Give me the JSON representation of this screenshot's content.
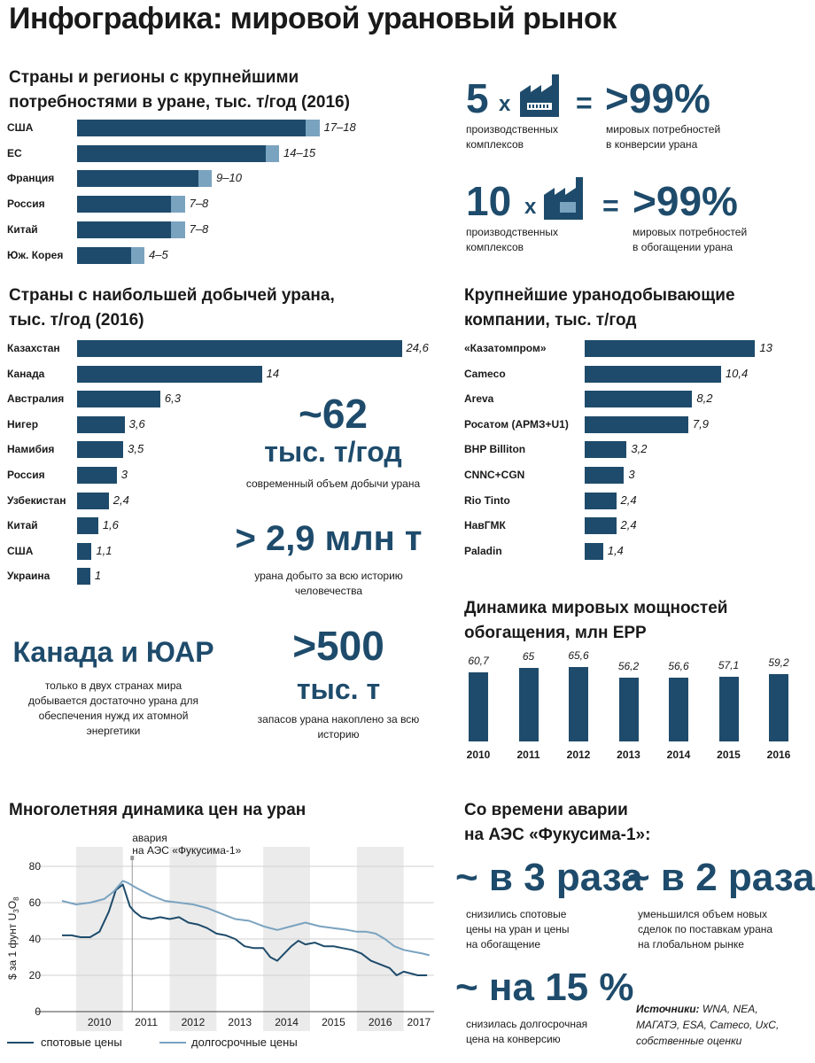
{
  "title": "Инфографика: мировой урановый рынок",
  "colors": {
    "dark": "#1e4b6b",
    "light": "#7aa3c0",
    "stripe": "#ebebeb"
  },
  "consumption": {
    "heading_line1": "Страны и регионы с крупнейшими",
    "heading_line2": "потребностями в уране, тыс. т/год (2016)",
    "items": [
      {
        "label": "США",
        "min": 17,
        "max": 18,
        "text": "17–18"
      },
      {
        "label": "ЕС",
        "min": 14,
        "max": 15,
        "text": "14–15"
      },
      {
        "label": "Франция",
        "min": 9,
        "max": 10,
        "text": "9–10"
      },
      {
        "label": "Россия",
        "min": 7,
        "max": 8,
        "text": "7–8"
      },
      {
        "label": "Китай",
        "min": 7,
        "max": 8,
        "text": "7–8"
      },
      {
        "label": "Юж. Корея",
        "min": 4,
        "max": 5,
        "text": "4–5"
      }
    ]
  },
  "conversion": {
    "count": "5",
    "x": "x",
    "eq": "=",
    "percent": ">99%",
    "left_line1": "производственных",
    "left_line2": "комплексов",
    "right_line1": "мировых потребностей",
    "right_line2": "в конверсии урана"
  },
  "enrichment": {
    "count": "10",
    "x": "x",
    "eq": "=",
    "percent": ">99%",
    "left_line1": "производственных",
    "left_line2": "комплексов",
    "right_line1": "мировых потребностей",
    "right_line2": "в обогащении урана"
  },
  "production": {
    "heading_line1": "Страны с наибольшей добычей урана,",
    "heading_line2": "тыс. т/год (2016)",
    "items": [
      {
        "label": "Казахстан",
        "value": 24.6,
        "text": "24,6"
      },
      {
        "label": "Канада",
        "value": 14,
        "text": "14"
      },
      {
        "label": "Австралия",
        "value": 6.3,
        "text": "6,3"
      },
      {
        "label": "Нигер",
        "value": 3.6,
        "text": "3,6"
      },
      {
        "label": "Намибия",
        "value": 3.5,
        "text": "3,5"
      },
      {
        "label": "Россия",
        "value": 3,
        "text": "3"
      },
      {
        "label": "Узбекистан",
        "value": 2.4,
        "text": "2,4"
      },
      {
        "label": "Китай",
        "value": 1.6,
        "text": "1,6"
      },
      {
        "label": "США",
        "value": 1.1,
        "text": "1,1"
      },
      {
        "label": "Украина",
        "value": 1,
        "text": "1"
      }
    ]
  },
  "stat_production": {
    "value": "~62",
    "unit": "тыс. т/год",
    "caption": "современный объем добычи урана"
  },
  "stat_history": {
    "value": "> 2,9 млн т",
    "caption_line1": "урана добыто за всю историю",
    "caption_line2": "человечества"
  },
  "stat_canada": {
    "value": "Канада и ЮАР",
    "line1": "только в двух странах мира",
    "line2": "добывается достаточно урана для",
    "line3": "обеспечения нужд их атомной",
    "line4": "энергетики"
  },
  "stat_reserves": {
    "value": ">500",
    "unit": "тыс. т",
    "line1": "запасов урана накоплено за всю",
    "line2": "историю"
  },
  "companies": {
    "heading_line1": "Крупнейшие уранодобывающие",
    "heading_line2": "компании, тыс. т/год",
    "items": [
      {
        "label": "«Казатомпром»",
        "value": 13,
        "text": "13"
      },
      {
        "label": "Cameco",
        "value": 10.4,
        "text": "10,4"
      },
      {
        "label": "Areva",
        "value": 8.2,
        "text": "8,2"
      },
      {
        "label": "Росатом (АРМЗ+U1)",
        "value": 7.9,
        "text": "7,9"
      },
      {
        "label": "BHP Billiton",
        "value": 3.2,
        "text": "3,2"
      },
      {
        "label": "CNNC+CGN",
        "value": 3,
        "text": "3"
      },
      {
        "label": "Rio Tinto",
        "value": 2.4,
        "text": "2,4"
      },
      {
        "label": "НавГМК",
        "value": 2.4,
        "text": "2,4"
      },
      {
        "label": "Paladin",
        "value": 1.4,
        "text": "1,4"
      }
    ]
  },
  "enrichment_capacity": {
    "heading_line1": "Динамика мировых мощностей",
    "heading_line2": "обогащения, млн ЕРР",
    "items": [
      {
        "year": "2010",
        "value": 60.7,
        "text": "60,7"
      },
      {
        "year": "2011",
        "value": 65,
        "text": "65"
      },
      {
        "year": "2012",
        "value": 65.6,
        "text": "65,6"
      },
      {
        "year": "2013",
        "value": 56.2,
        "text": "56,2"
      },
      {
        "year": "2014",
        "value": 56.6,
        "text": "56,6"
      },
      {
        "year": "2015",
        "value": 57.1,
        "text": "57,1"
      },
      {
        "year": "2016",
        "value": 59.2,
        "text": "59,2"
      }
    ]
  },
  "prices": {
    "heading": "Многолетняя динамика цен на уран",
    "ylabel_prefix": "$ за 1 фунт U",
    "ylabel_sub3": "3",
    "ylabel_o": "O",
    "ylabel_sub8": "8",
    "annotation_line1": "авария",
    "annotation_line2": "на АЭС «Фукусима-1»",
    "yticks": [
      "0",
      "20",
      "40",
      "60",
      "80"
    ],
    "years": [
      "2010",
      "2011",
      "2012",
      "2013",
      "2014",
      "2015",
      "2016",
      "2017"
    ],
    "legend_spot": "спотовые цены",
    "legend_long": "долгосрочные цены"
  },
  "chart_data": [
    {
      "type": "bar",
      "title": "Страны и регионы с крупнейшими потребностями в уране, тыс. т/год (2016)",
      "categories": [
        "США",
        "ЕС",
        "Франция",
        "Россия",
        "Китай",
        "Юж. Корея"
      ],
      "series": [
        {
          "values_min": [
            17,
            14,
            9,
            7,
            7,
            4
          ],
          "values_max": [
            18,
            15,
            10,
            8,
            8,
            5
          ]
        }
      ]
    },
    {
      "type": "bar",
      "title": "Страны с наибольшей добычей урана, тыс. т/год (2016)",
      "categories": [
        "Казахстан",
        "Канада",
        "Австралия",
        "Нигер",
        "Намибия",
        "Россия",
        "Узбекистан",
        "Китай",
        "США",
        "Украина"
      ],
      "values": [
        24.6,
        14,
        6.3,
        3.6,
        3.5,
        3,
        2.4,
        1.6,
        1.1,
        1
      ]
    },
    {
      "type": "bar",
      "title": "Крупнейшие уранодобывающие компании, тыс. т/год",
      "categories": [
        "«Казатомпром»",
        "Cameco",
        "Areva",
        "Росатом (АРМЗ+U1)",
        "BHP Billiton",
        "CNNC+CGN",
        "Rio Tinto",
        "НавГМК",
        "Paladin"
      ],
      "values": [
        13,
        10.4,
        8.2,
        7.9,
        3.2,
        3,
        2.4,
        2.4,
        1.4
      ]
    },
    {
      "type": "bar",
      "title": "Динамика мировых мощностей обогащения, млн ЕРР",
      "categories": [
        "2010",
        "2011",
        "2012",
        "2013",
        "2014",
        "2015",
        "2016"
      ],
      "values": [
        60.7,
        65,
        65.6,
        56.2,
        56.6,
        57.1,
        59.2
      ]
    },
    {
      "type": "line",
      "title": "Многолетняя динамика цен на уран",
      "ylabel": "$ за 1 фунт U3O8",
      "ylim": [
        0,
        80
      ],
      "xlim": [
        2009.7,
        2017.65
      ],
      "grid": true,
      "legend": "bottom",
      "series": [
        {
          "name": "спотовые цены",
          "x": [
            2009.7,
            2009.9,
            2010.1,
            2010.3,
            2010.5,
            2010.7,
            2010.85,
            2011.0,
            2011.05,
            2011.15,
            2011.25,
            2011.4,
            2011.6,
            2011.8,
            2012.0,
            2012.2,
            2012.4,
            2012.6,
            2012.8,
            2013.0,
            2013.2,
            2013.4,
            2013.6,
            2013.8,
            2014.0,
            2014.15,
            2014.3,
            2014.45,
            2014.6,
            2014.75,
            2014.9,
            2015.1,
            2015.3,
            2015.5,
            2015.7,
            2015.9,
            2016.1,
            2016.3,
            2016.5,
            2016.7,
            2016.85,
            2017.0,
            2017.15,
            2017.3,
            2017.5
          ],
          "y": [
            42,
            42,
            41,
            41,
            44,
            55,
            67,
            70,
            66,
            58,
            55,
            52,
            51,
            52,
            51,
            52,
            49,
            48,
            46,
            43,
            42,
            40,
            36,
            35,
            35,
            30,
            28,
            32,
            36,
            39,
            37,
            38,
            36,
            36,
            35,
            34,
            32,
            28,
            26,
            24,
            20,
            22,
            21,
            20,
            20
          ]
        },
        {
          "name": "долгосрочные цены",
          "x": [
            2009.7,
            2010.0,
            2010.3,
            2010.6,
            2010.8,
            2011.0,
            2011.1,
            2011.3,
            2011.6,
            2011.9,
            2012.2,
            2012.5,
            2012.8,
            2013.1,
            2013.4,
            2013.7,
            2014.0,
            2014.3,
            2014.6,
            2014.9,
            2015.2,
            2015.5,
            2015.8,
            2016.0,
            2016.2,
            2016.4,
            2016.6,
            2016.8,
            2017.0,
            2017.2,
            2017.4,
            2017.55
          ],
          "y": [
            61,
            59,
            60,
            62,
            66,
            72,
            71,
            68,
            64,
            61,
            60,
            59,
            57,
            54,
            51,
            50,
            47,
            45,
            47,
            49,
            47,
            46,
            45,
            44,
            44,
            43,
            40,
            36,
            34,
            33,
            32,
            31
          ]
        }
      ]
    }
  ],
  "fukushima": {
    "heading_line1": "Со времени аварии",
    "heading_line2": "на АЭС «Фукусима-1»:",
    "s1_value": "~ в 3 раза",
    "s1_line1": "снизились спотовые",
    "s1_line2": "цены на уран и цены",
    "s1_line3": "на обогащение",
    "s2_value": "~ в 2 раза",
    "s2_line1": "уменьшился объем новых",
    "s2_line2": "сделок по поставкам урана",
    "s2_line3": "на глобальном рынке",
    "s3_value": "~ на 15 %",
    "s3_line1": "снизилась долгосрочная",
    "s3_line2": "цена на конверсию"
  },
  "sources": {
    "label": "Источники:",
    "text1": " WNA, NEA,",
    "text2": "МАГАТЭ, ESA, Cameco, UxC,",
    "text3": "собственные оценки"
  }
}
